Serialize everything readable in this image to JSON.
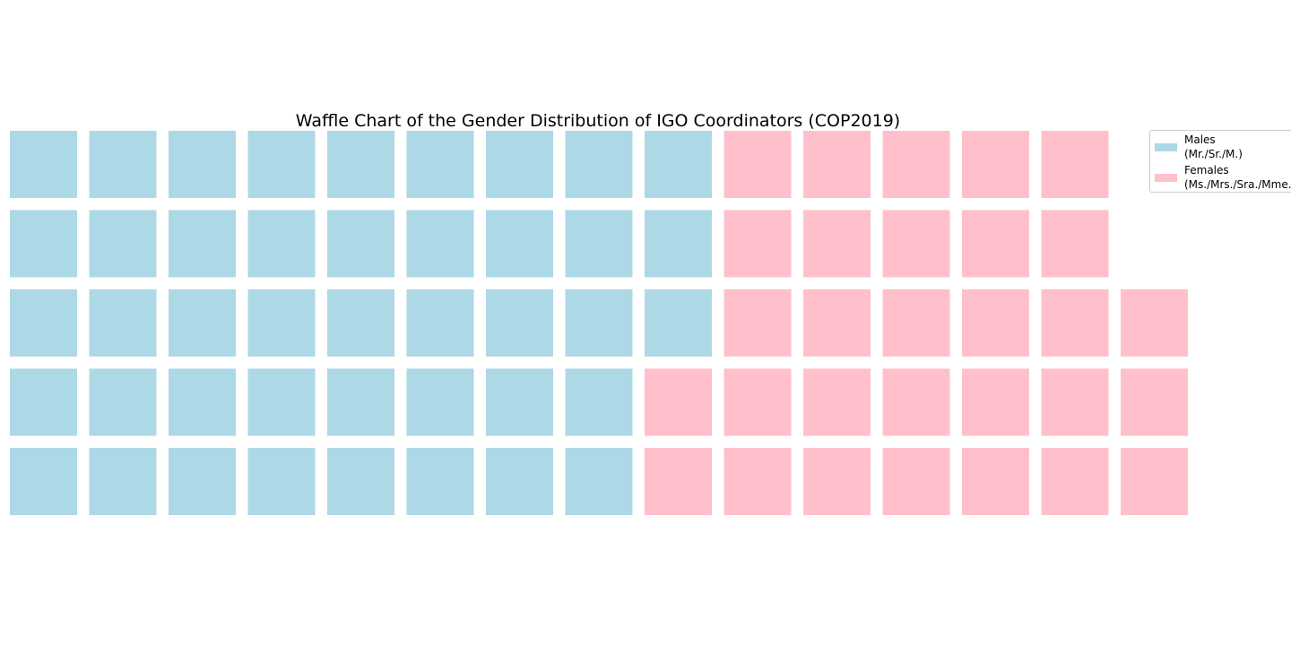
{
  "chart_data": {
    "type": "waffle",
    "title": "Waffle Chart of the Gender Distribution of IGO Coordinators (COP2019)",
    "rows": 5,
    "columns": 15,
    "column_counts": [
      {
        "males": 5,
        "females": 0
      },
      {
        "males": 5,
        "females": 0
      },
      {
        "males": 5,
        "females": 0
      },
      {
        "males": 5,
        "females": 0
      },
      {
        "males": 5,
        "females": 0
      },
      {
        "males": 5,
        "females": 0
      },
      {
        "males": 5,
        "females": 0
      },
      {
        "males": 5,
        "females": 0
      },
      {
        "males": 3,
        "females": 2
      },
      {
        "males": 0,
        "females": 5
      },
      {
        "males": 0,
        "females": 5
      },
      {
        "males": 0,
        "females": 5
      },
      {
        "males": 0,
        "females": 5
      },
      {
        "males": 0,
        "females": 5
      },
      {
        "males": 0,
        "females": 3
      }
    ],
    "series": [
      {
        "name": "Males\n(Mr./Sr./M.)",
        "color": "#add8e6",
        "count": 43
      },
      {
        "name": "Females\n(Ms./Mrs./Sra./Mme.)",
        "color": "#ffc0cb",
        "count": 30
      }
    ],
    "legend": {
      "position": "upper right, outside"
    },
    "grid": false
  }
}
